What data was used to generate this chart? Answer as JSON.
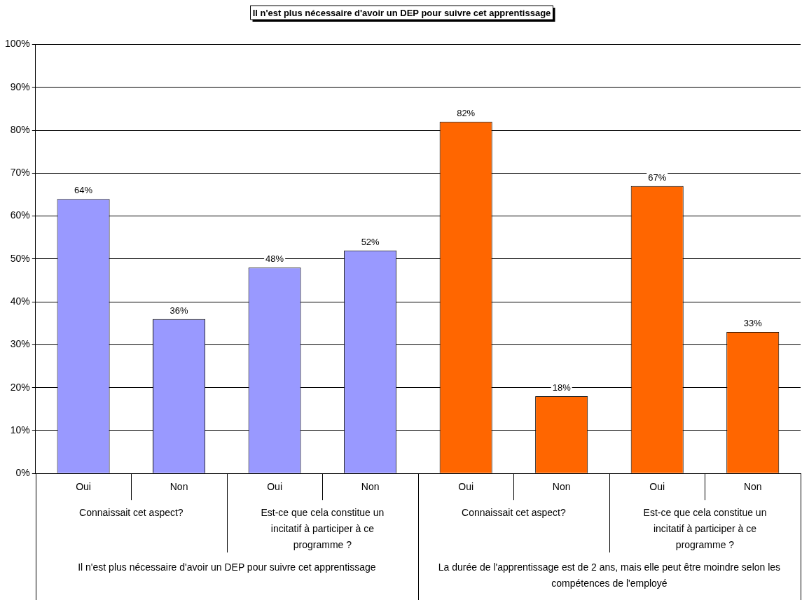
{
  "chart_data": {
    "type": "bar",
    "title": "Il n'est plus nécessaire d'avoir un DEP pour suivre cet apprentissage",
    "categories": [
      "Oui",
      "Non",
      "Oui",
      "Non",
      "Oui",
      "Non",
      "Oui",
      "Non"
    ],
    "values": [
      64,
      36,
      48,
      52,
      82,
      18,
      67,
      33
    ],
    "colors": [
      "#9999ff",
      "#9999ff",
      "#9999ff",
      "#9999ff",
      "#ff6600",
      "#ff6600",
      "#ff6600",
      "#ff6600"
    ],
    "value_labels": [
      "64%",
      "36%",
      "48%",
      "52%",
      "82%",
      "18%",
      "67%",
      "33%"
    ],
    "annotations": [
      "Connaissait cet aspect?",
      "Est-ce que cela constitue un incitatif à participer à ce programme ?",
      "Connaissait cet aspect?",
      "Est-ce que cela constitue un incitatif à participer à ce programme ?",
      "Il n'est plus nécessaire d'avoir un DEP pour suivre cet apprentissage",
      "La durée de l'apprentissage est de 2 ans, mais elle peut être moindre selon les compétences de l'employé"
    ],
    "ylim": [
      0,
      100
    ],
    "yticks": [
      {
        "value": 0,
        "label": "0%"
      },
      {
        "value": 10,
        "label": "10%"
      },
      {
        "value": 20,
        "label": "20%"
      },
      {
        "value": 30,
        "label": "30%"
      },
      {
        "value": 40,
        "label": "40%"
      },
      {
        "value": 50,
        "label": "50%"
      },
      {
        "value": 60,
        "label": "60%"
      },
      {
        "value": 70,
        "label": "70%"
      },
      {
        "value": 80,
        "label": "80%"
      },
      {
        "value": 90,
        "label": "90%"
      },
      {
        "value": 100,
        "label": "100%"
      }
    ],
    "grid": "y",
    "legend": false
  }
}
